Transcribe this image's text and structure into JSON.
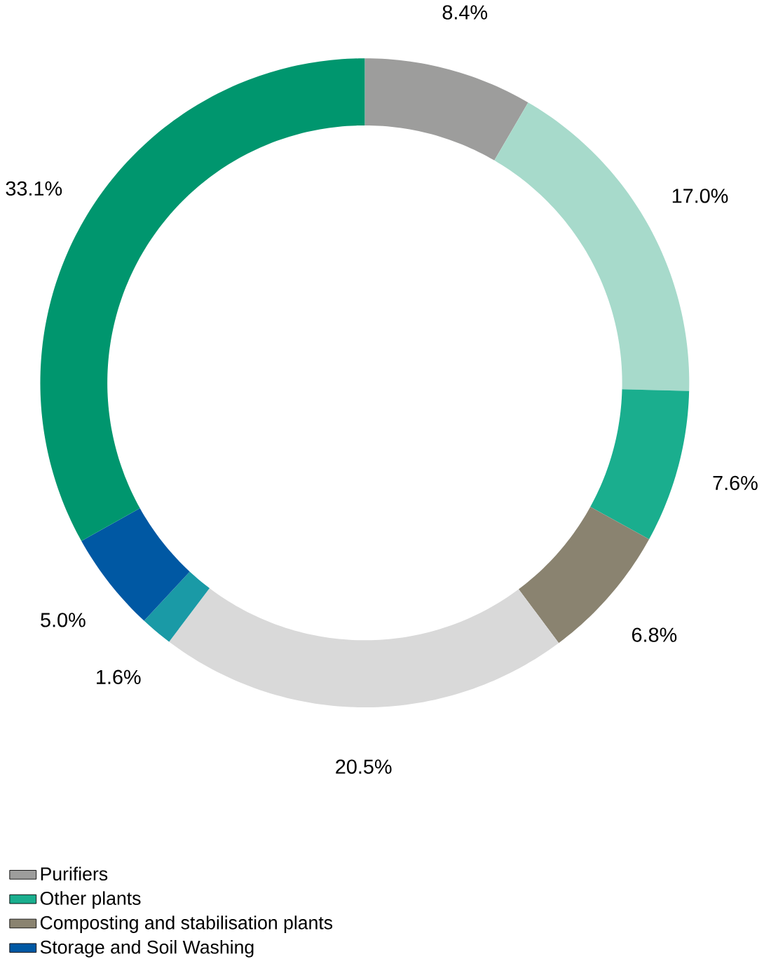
{
  "chart_data": {
    "type": "donut",
    "categories": [
      "Purifiers",
      null,
      "Other plants",
      "Composting and stabilisation plants",
      null,
      null,
      "Storage and Soil Washing",
      null
    ],
    "values": [
      8.4,
      17.0,
      7.6,
      6.8,
      20.5,
      1.6,
      5.0,
      33.1
    ],
    "value_labels": [
      "8.4%",
      "17.0%",
      "7.6%",
      "6.8%",
      "20.5%",
      "1.6%",
      "5.0%",
      "33.1%"
    ],
    "colors": [
      "#9d9d9c",
      "#a7dacb",
      "#1aae8e",
      "#8a8370",
      "#d9d9d9",
      "#1a9aa6",
      "#0058a3",
      "#00966e"
    ],
    "legend": "bottom left"
  }
}
